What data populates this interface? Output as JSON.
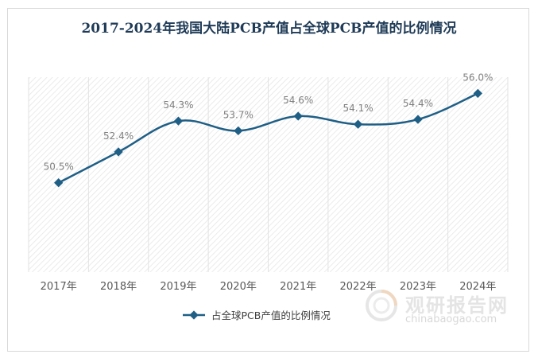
{
  "chart_data": {
    "type": "line",
    "title": "2017-2024年我国大陆PCB产值占全球PCB产值的比例情况",
    "categories": [
      "2017年",
      "2018年",
      "2019年",
      "2020年",
      "2021年",
      "2022年",
      "2023年",
      "2024年"
    ],
    "series": [
      {
        "name": "占全球PCB产值的比例情况",
        "values": [
          50.5,
          52.4,
          54.3,
          53.7,
          54.6,
          54.1,
          54.4,
          56.0
        ],
        "labels": [
          "50.5%",
          "52.4%",
          "54.3%",
          "53.7%",
          "54.6%",
          "54.1%",
          "54.4%",
          "56.0%"
        ]
      }
    ],
    "ylim": [
      45,
      57
    ],
    "legend_position": "bottom",
    "colors": {
      "line": "#1f5f86",
      "marker": "#1f5f86",
      "data_label": "#808080",
      "title": "#1f3b57"
    }
  },
  "watermark": {
    "brand": "观研报告网",
    "url": "chinabaogao.com"
  }
}
